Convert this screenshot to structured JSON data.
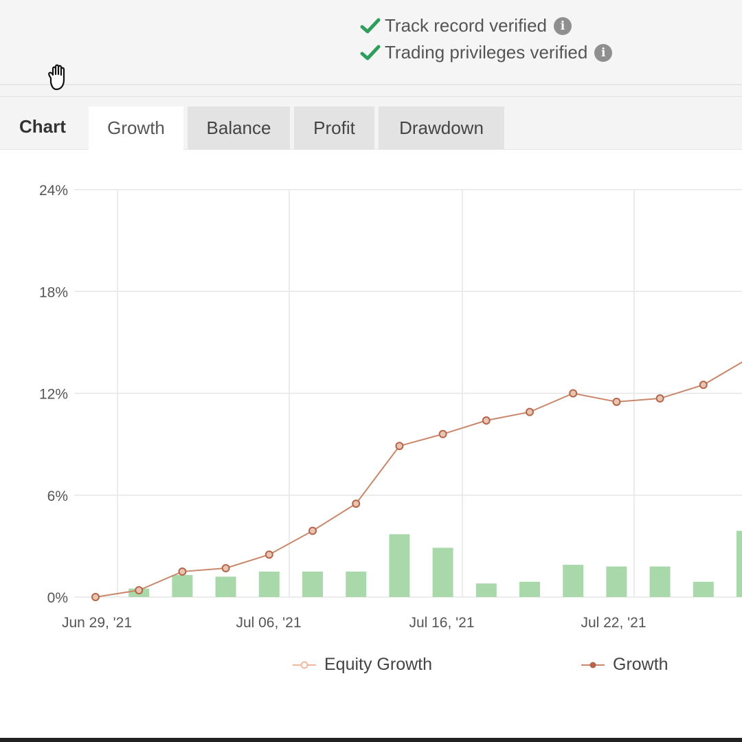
{
  "verification": {
    "track_record": "Track record verified",
    "trading_privileges": "Trading privileges verified"
  },
  "tabs": {
    "chart_label": "Chart",
    "items": [
      {
        "label": "Growth",
        "active": true
      },
      {
        "label": "Balance",
        "active": false
      },
      {
        "label": "Profit",
        "active": false
      },
      {
        "label": "Drawdown",
        "active": false
      }
    ]
  },
  "colors": {
    "check": "#2e9e5b",
    "growth_line": "#c8876a",
    "growth_marker": "#b5654a",
    "equity_marker": "#f0b89a",
    "bar": "#a9d8ab",
    "grid": "#e6e6e6"
  },
  "chart_data": {
    "type": "line",
    "y_tick_labels": [
      "0%",
      "6%",
      "12%",
      "18%",
      "24%"
    ],
    "ylim": [
      0,
      24
    ],
    "x_tick_labels": [
      "Jun 29, '21",
      "Jul 06, '21",
      "Jul 16, '21",
      "Jul 22, '21"
    ],
    "series": [
      {
        "name": "Growth",
        "type": "line",
        "values": [
          0.0,
          0.4,
          1.5,
          1.7,
          2.5,
          3.9,
          5.5,
          8.9,
          9.6,
          10.4,
          10.9,
          12.0,
          11.5,
          11.7,
          12.5,
          14.0
        ]
      },
      {
        "name": "Equity Growth",
        "type": "bar",
        "values": [
          0.0,
          0.5,
          1.3,
          1.2,
          1.5,
          1.5,
          1.5,
          3.7,
          2.9,
          0.8,
          0.9,
          1.9,
          1.8,
          1.8,
          0.9,
          3.9
        ]
      }
    ],
    "legend": [
      "Equity Growth",
      "Growth"
    ],
    "grid": true
  }
}
